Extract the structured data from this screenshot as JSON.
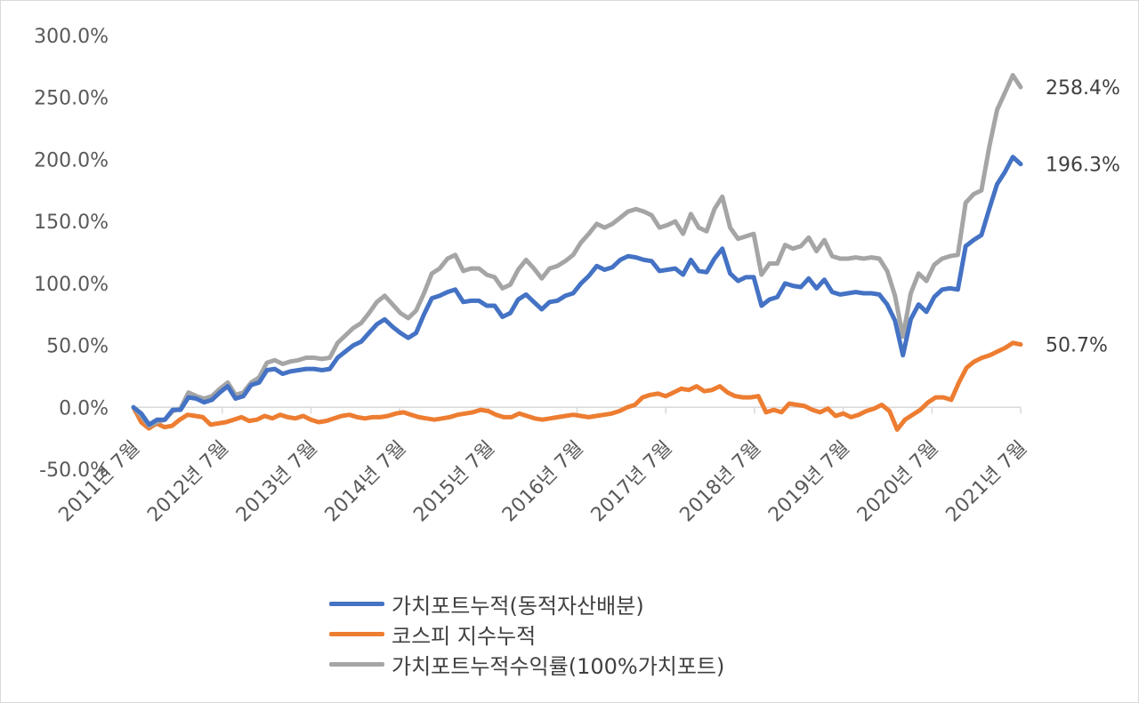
{
  "chart_data": {
    "type": "line",
    "yticks": [
      "300.0%",
      "250.0%",
      "200.0%",
      "150.0%",
      "100.0%",
      "50.0%",
      "0.0%",
      "-50.0%"
    ],
    "ylim": [
      -50,
      300
    ],
    "xticks": [
      "2011년 7월",
      "2012년 7월",
      "2013년 7월",
      "2014년 7월",
      "2015년 7월",
      "2016년 7월",
      "2017년 7월",
      "2018년 7월",
      "2019년 7월",
      "2020년 7월",
      "2021년 7월"
    ],
    "x_start": "2011-07",
    "x_end": "2021-07",
    "grid": false,
    "legend_position": "bottom",
    "series": [
      {
        "name": "가치포트누적(동적자산배분)",
        "color": "#4472C4",
        "end_label": "196.3%",
        "values": [
          0,
          -5,
          -14,
          -10,
          -10,
          -2,
          -2,
          8,
          7,
          4,
          6,
          12,
          17,
          7,
          9,
          18,
          20,
          30,
          31,
          27,
          29,
          30,
          31,
          31,
          30,
          31,
          40,
          45,
          50,
          53,
          60,
          67,
          71,
          65,
          60,
          56,
          60,
          75,
          88,
          90,
          93,
          95,
          85,
          86,
          86,
          82,
          82,
          73,
          76,
          87,
          91,
          85,
          79,
          85,
          86,
          90,
          92,
          100,
          106,
          114,
          111,
          113,
          119,
          122,
          121,
          119,
          118,
          110,
          111,
          112,
          107,
          119,
          110,
          109,
          120,
          128,
          108,
          102,
          105,
          105,
          82,
          87,
          89,
          100,
          98,
          97,
          104,
          96,
          103,
          93,
          91,
          92,
          93,
          92,
          92,
          91,
          83,
          70,
          42,
          71,
          83,
          77,
          89,
          95,
          96,
          95,
          130,
          135,
          139,
          160,
          180,
          190,
          202,
          196.3
        ]
      },
      {
        "name": "코스피 지수누적",
        "color": "#ED7D31",
        "end_label": "50.7%",
        "values": [
          0,
          -12,
          -17,
          -13,
          -16,
          -15,
          -10,
          -6,
          -7,
          -8,
          -14,
          -13,
          -12,
          -10,
          -8,
          -11,
          -10,
          -7,
          -9,
          -6,
          -8,
          -9,
          -7,
          -10,
          -12,
          -11,
          -9,
          -7,
          -6,
          -8,
          -9,
          -8,
          -8,
          -7,
          -5,
          -4,
          -6,
          -8,
          -9,
          -10,
          -9,
          -8,
          -6,
          -5,
          -4,
          -2,
          -3,
          -6,
          -8,
          -8,
          -5,
          -7,
          -9,
          -10,
          -9,
          -8,
          -7,
          -6,
          -7,
          -8,
          -7,
          -6,
          -5,
          -3,
          0,
          2,
          8,
          10,
          11,
          9,
          12,
          15,
          14,
          17,
          13,
          14,
          17,
          12,
          9,
          8,
          8,
          9,
          -4,
          -2,
          -4,
          3,
          2,
          1,
          -2,
          -4,
          -1,
          -7,
          -5,
          -8,
          -6,
          -3,
          -1,
          2,
          -3,
          -18,
          -10,
          -6,
          -2,
          4,
          8,
          8,
          6,
          20,
          32,
          37,
          40,
          42,
          45,
          48,
          52,
          50.7
        ]
      },
      {
        "name": "가치포트누적수익률(100%가치포트)",
        "color": "#A5A5A5",
        "end_label": "258.4%",
        "values": [
          0,
          -7,
          -15,
          -12,
          -10,
          -3,
          -1,
          12,
          9,
          7,
          9,
          15,
          20,
          10,
          12,
          20,
          24,
          36,
          38,
          35,
          37,
          38,
          40,
          40,
          39,
          40,
          52,
          58,
          64,
          68,
          76,
          85,
          90,
          83,
          76,
          72,
          78,
          92,
          108,
          112,
          120,
          123,
          110,
          112,
          112,
          107,
          105,
          96,
          99,
          111,
          119,
          112,
          104,
          112,
          114,
          118,
          123,
          133,
          140,
          148,
          145,
          148,
          153,
          158,
          160,
          158,
          155,
          145,
          147,
          150,
          140,
          156,
          145,
          142,
          160,
          170,
          145,
          136,
          138,
          140,
          107,
          116,
          116,
          131,
          128,
          130,
          137,
          126,
          135,
          122,
          120,
          120,
          121,
          120,
          121,
          120,
          110,
          90,
          57,
          92,
          108,
          102,
          115,
          120,
          122,
          123,
          165,
          172,
          175,
          210,
          240,
          254,
          268,
          258.4
        ]
      }
    ]
  }
}
